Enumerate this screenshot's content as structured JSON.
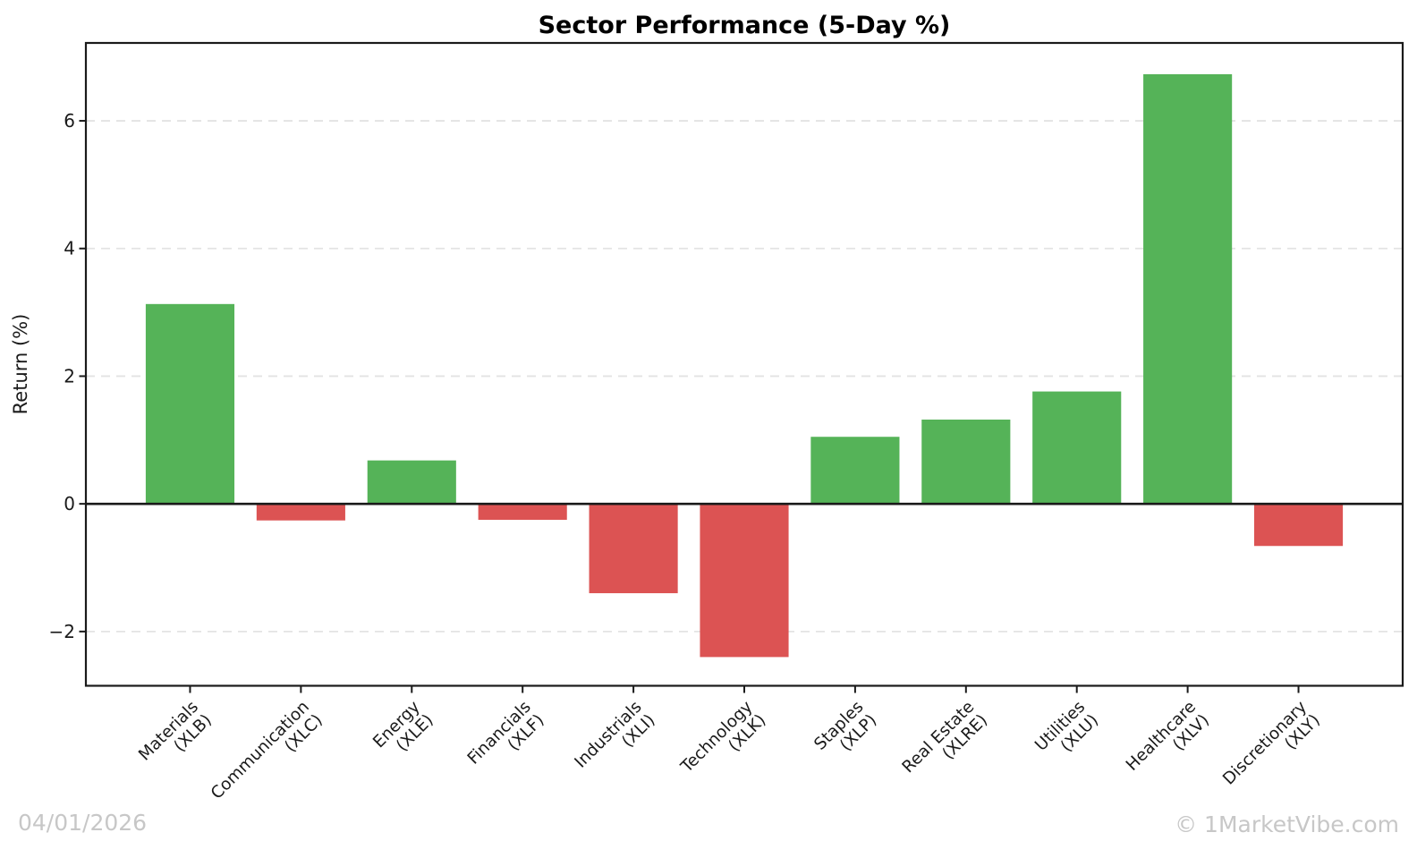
{
  "title": "Sector Performance (5-Day %)",
  "footer": {
    "date": "04/01/2026",
    "copyright": "© 1MarketVibe.com"
  },
  "chart_data": {
    "type": "bar",
    "title": "Sector Performance (5-Day %)",
    "xlabel": "",
    "ylabel": "Return (%)",
    "bars": [
      {
        "label": "Materials",
        "ticker": "XLB",
        "value": 3.13
      },
      {
        "label": "Communication",
        "ticker": "XLC",
        "value": -0.26
      },
      {
        "label": "Energy",
        "ticker": "XLE",
        "value": 0.68
      },
      {
        "label": "Financials",
        "ticker": "XLF",
        "value": -0.25
      },
      {
        "label": "Industrials",
        "ticker": "XLI",
        "value": -1.4
      },
      {
        "label": "Technology",
        "ticker": "XLK",
        "value": -2.4
      },
      {
        "label": "Staples",
        "ticker": "XLP",
        "value": 1.05
      },
      {
        "label": "Real Estate",
        "ticker": "XLRE",
        "value": 1.32
      },
      {
        "label": "Utilities",
        "ticker": "XLU",
        "value": 1.76
      },
      {
        "label": "Healthcare",
        "ticker": "XLV",
        "value": 6.73
      },
      {
        "label": "Discretionary",
        "ticker": "XLY",
        "value": -0.66
      }
    ],
    "yticks": [
      -2,
      0,
      2,
      4,
      6
    ],
    "ytick_labels": [
      "−2",
      "0",
      "2",
      "4",
      "6"
    ],
    "ylim": [
      -2.85,
      7.22
    ],
    "grid": {
      "axis": "y",
      "style": "dashed",
      "color": "#e3e3e3"
    },
    "zero_line": true,
    "legend": "none",
    "colors": {
      "positive": "#55b358",
      "negative": "#dc5353"
    }
  }
}
